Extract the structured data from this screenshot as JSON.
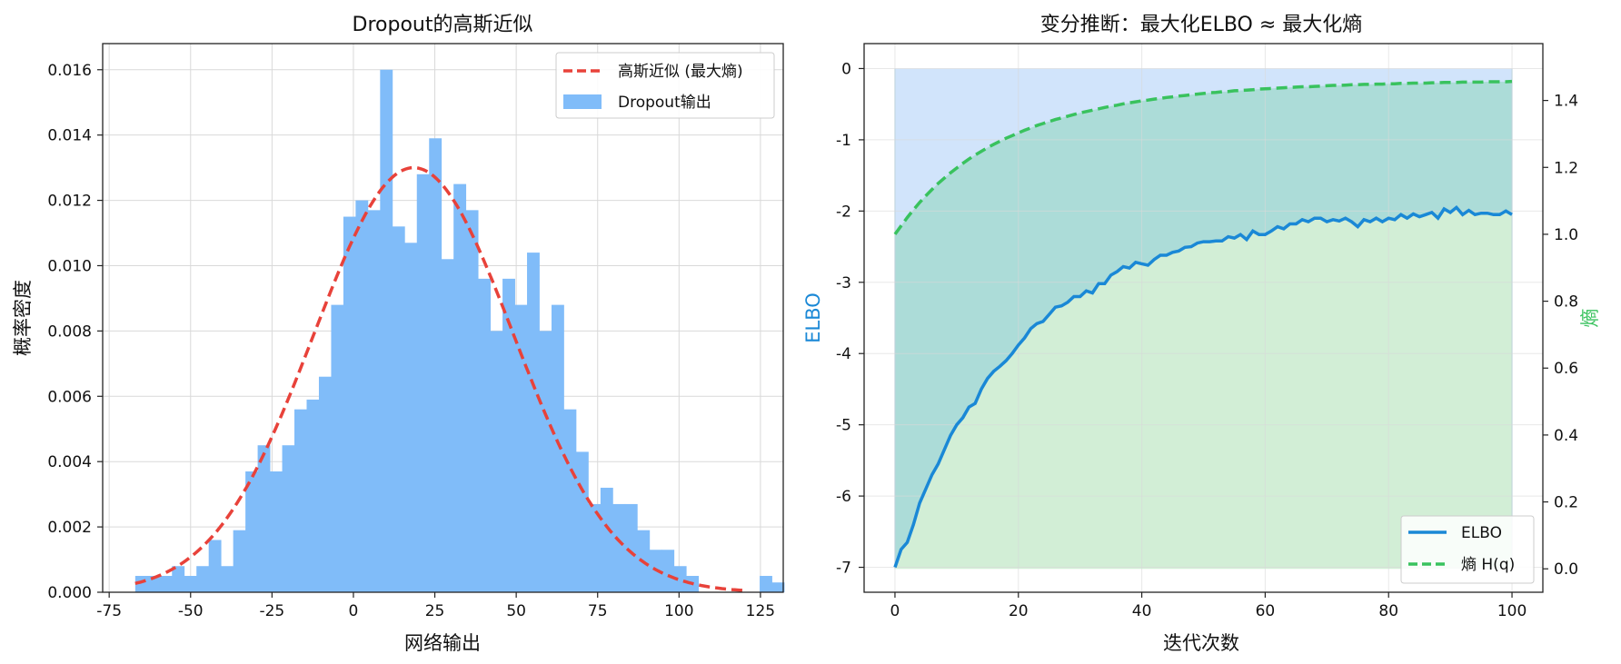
{
  "chart_data": [
    {
      "type": "bar",
      "title": "Dropout的高斯近似",
      "xlabel": "网络输出",
      "ylabel": "概率密度",
      "xlim": [
        -77,
        132
      ],
      "ylim": [
        0,
        0.0168
      ],
      "xticks": [
        -75,
        -50,
        -25,
        0,
        25,
        50,
        75,
        100,
        125
      ],
      "xtick_labels": [
        "-75",
        "-50",
        "-25",
        "0",
        "25",
        "50",
        "75",
        "100",
        "125"
      ],
      "yticks": [
        0,
        0.002,
        0.004,
        0.006,
        0.008,
        0.01,
        0.012,
        0.014,
        0.016
      ],
      "ytick_labels": [
        "0.000",
        "0.002",
        "0.004",
        "0.006",
        "0.008",
        "0.010",
        "0.012",
        "0.014",
        "0.016"
      ],
      "grid": true,
      "legend_position": "top-right",
      "histogram": {
        "name": "Dropout输出",
        "color": "#80bcf9",
        "bin_start": -67,
        "bin_width": 3.76,
        "values": [
          0.0005,
          0.0005,
          0.0005,
          0.0008,
          0.0005,
          0.0008,
          0.0016,
          0.0008,
          0.0019,
          0.0037,
          0.0045,
          0.0037,
          0.0045,
          0.0056,
          0.0059,
          0.0066,
          0.0088,
          0.0115,
          0.012,
          0.0117,
          0.016,
          0.0112,
          0.0107,
          0.0128,
          0.0139,
          0.0102,
          0.0125,
          0.0117,
          0.0096,
          0.008,
          0.0096,
          0.0088,
          0.0104,
          0.008,
          0.0088,
          0.0056,
          0.0043,
          0.0027,
          0.0032,
          0.0027,
          0.0027,
          0.0019,
          0.0013,
          0.0013,
          0.0008,
          0.0005,
          0,
          0,
          0,
          0,
          0,
          0.0005,
          0.0003
        ]
      },
      "curve": {
        "name": "高斯近似 (最大熵)",
        "color": "#e8423a",
        "style": "dashed",
        "mean": 18.5,
        "std": 30.7,
        "peak": 0.013,
        "x_range": [
          -67,
          121
        ]
      }
    },
    {
      "type": "line",
      "title": "变分推断：最大化ELBO ≈ 最大化熵",
      "xlabel": "迭代次数",
      "ylabel": "ELBO",
      "y2label": "熵",
      "xlim": [
        -5,
        105
      ],
      "ylim": [
        -7.35,
        0.35
      ],
      "y2lim": [
        -0.07,
        1.57
      ],
      "xticks": [
        0,
        20,
        40,
        60,
        80,
        100
      ],
      "xtick_labels": [
        "0",
        "20",
        "40",
        "60",
        "80",
        "100"
      ],
      "yticks": [
        -7,
        -6,
        -5,
        -4,
        -3,
        -2,
        -1,
        0
      ],
      "ytick_labels": [
        "-7",
        "-6",
        "-5",
        "-4",
        "-3",
        "-2",
        "-1",
        "0"
      ],
      "y2ticks": [
        0,
        0.2,
        0.4,
        0.6,
        0.8,
        1.0,
        1.2,
        1.4
      ],
      "y2tick_labels": [
        "0.0",
        "0.2",
        "0.4",
        "0.6",
        "0.8",
        "1.0",
        "1.2",
        "1.4"
      ],
      "grid": true,
      "legend_position": "bottom-right",
      "x": [
        0,
        1,
        2,
        3,
        4,
        5,
        6,
        7,
        8,
        9,
        10,
        11,
        12,
        13,
        14,
        15,
        16,
        17,
        18,
        19,
        20,
        21,
        22,
        23,
        24,
        25,
        26,
        27,
        28,
        29,
        30,
        31,
        32,
        33,
        34,
        35,
        36,
        37,
        38,
        39,
        40,
        41,
        42,
        43,
        44,
        45,
        46,
        47,
        48,
        49,
        50,
        51,
        52,
        53,
        54,
        55,
        56,
        57,
        58,
        59,
        60,
        61,
        62,
        63,
        64,
        65,
        66,
        67,
        68,
        69,
        70,
        71,
        72,
        73,
        74,
        75,
        76,
        77,
        78,
        79,
        80,
        81,
        82,
        83,
        84,
        85,
        86,
        87,
        88,
        89,
        90,
        91,
        92,
        93,
        94,
        95,
        96,
        97,
        98,
        99,
        100
      ],
      "series": [
        {
          "name": "ELBO",
          "color": "#1a88d6",
          "style": "solid",
          "axis": "left",
          "values": [
            -7.0,
            -6.75,
            -6.65,
            -6.4,
            -6.1,
            -5.9,
            -5.7,
            -5.55,
            -5.35,
            -5.15,
            -5.0,
            -4.9,
            -4.75,
            -4.7,
            -4.5,
            -4.35,
            -4.25,
            -4.18,
            -4.1,
            -4.0,
            -3.88,
            -3.78,
            -3.65,
            -3.58,
            -3.55,
            -3.45,
            -3.35,
            -3.33,
            -3.28,
            -3.2,
            -3.2,
            -3.12,
            -3.15,
            -3.02,
            -3.02,
            -2.9,
            -2.85,
            -2.78,
            -2.8,
            -2.72,
            -2.74,
            -2.76,
            -2.68,
            -2.62,
            -2.62,
            -2.58,
            -2.56,
            -2.51,
            -2.5,
            -2.45,
            -2.43,
            -2.43,
            -2.42,
            -2.42,
            -2.36,
            -2.38,
            -2.33,
            -2.4,
            -2.28,
            -2.33,
            -2.33,
            -2.28,
            -2.22,
            -2.25,
            -2.18,
            -2.18,
            -2.12,
            -2.15,
            -2.1,
            -2.1,
            -2.15,
            -2.12,
            -2.14,
            -2.1,
            -2.15,
            -2.22,
            -2.12,
            -2.15,
            -2.1,
            -2.15,
            -2.1,
            -2.12,
            -2.05,
            -2.1,
            -2.04,
            -2.08,
            -2.05,
            -2.02,
            -2.1,
            -1.97,
            -2.02,
            -1.95,
            -2.05,
            -1.99,
            -2.05,
            -2.03,
            -2.03,
            -2.05,
            -2.05,
            -2.0,
            -2.05
          ]
        },
        {
          "name": "熵 H(q)",
          "color": "#39c25e",
          "style": "dashed",
          "axis": "right",
          "values": [
            1.0,
            1.025,
            1.05,
            1.073,
            1.095,
            1.115,
            1.134,
            1.152,
            1.168,
            1.184,
            1.198,
            1.212,
            1.225,
            1.237,
            1.248,
            1.259,
            1.269,
            1.278,
            1.287,
            1.295,
            1.303,
            1.311,
            1.318,
            1.325,
            1.331,
            1.337,
            1.343,
            1.348,
            1.353,
            1.358,
            1.363,
            1.367,
            1.371,
            1.375,
            1.379,
            1.383,
            1.386,
            1.39,
            1.393,
            1.396,
            1.399,
            1.401,
            1.404,
            1.406,
            1.409,
            1.411,
            1.413,
            1.415,
            1.417,
            1.419,
            1.421,
            1.423,
            1.424,
            1.426,
            1.427,
            1.429,
            1.43,
            1.431,
            1.432,
            1.434,
            1.435,
            1.436,
            1.437,
            1.438,
            1.439,
            1.44,
            1.441,
            1.441,
            1.442,
            1.443,
            1.444,
            1.445,
            1.445,
            1.446,
            1.447,
            1.447,
            1.448,
            1.448,
            1.449,
            1.449,
            1.45,
            1.45,
            1.451,
            1.451,
            1.452,
            1.452,
            1.452,
            1.453,
            1.453,
            1.454,
            1.454,
            1.454,
            1.455,
            1.455,
            1.455,
            1.455,
            1.456,
            1.456,
            1.456,
            1.456,
            1.457
          ]
        }
      ],
      "shaded_regions": [
        {
          "between": [
            "ELBO",
            "y=0"
          ],
          "axis": "left",
          "color": "#cce1fb"
        },
        {
          "between": [
            "熵 H(q)",
            "y=0"
          ],
          "axis": "right",
          "color": "#d2eed6"
        }
      ],
      "overlap_color": "#acdcd8"
    }
  ]
}
